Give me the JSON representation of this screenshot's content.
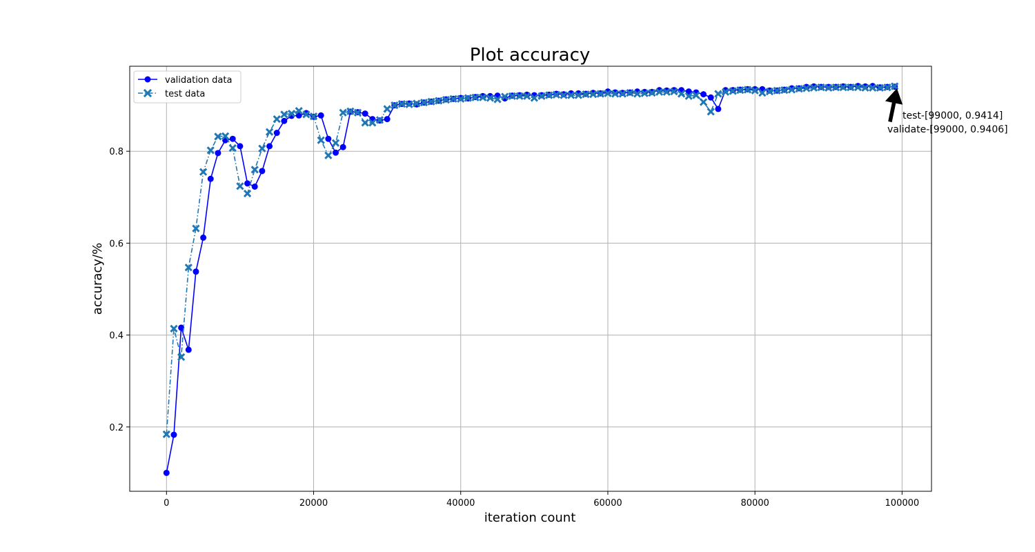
{
  "chart_data": {
    "type": "line",
    "title": "Plot accuracy",
    "xlabel": "iteration count",
    "ylabel": "accuracy/%",
    "xlim": [
      -5000,
      104000
    ],
    "ylim": [
      0.06,
      0.985
    ],
    "xticks": [
      0,
      20000,
      40000,
      60000,
      80000,
      100000
    ],
    "yticks": [
      0.2,
      0.4,
      0.6,
      0.8
    ],
    "xtick_labels": [
      "0",
      "20000",
      "40000",
      "60000",
      "80000",
      "100000"
    ],
    "ytick_labels": [
      "0.2",
      "0.4",
      "0.6",
      "0.8"
    ],
    "grid": true,
    "legend_position": "upper-left",
    "x": [
      0,
      1000,
      2000,
      3000,
      4000,
      5000,
      6000,
      7000,
      8000,
      9000,
      10000,
      11000,
      12000,
      13000,
      14000,
      15000,
      16000,
      17000,
      18000,
      19000,
      20000,
      21000,
      22000,
      23000,
      24000,
      25000,
      26000,
      27000,
      28000,
      29000,
      30000,
      31000,
      32000,
      33000,
      34000,
      35000,
      36000,
      37000,
      38000,
      39000,
      40000,
      41000,
      42000,
      43000,
      44000,
      45000,
      46000,
      47000,
      48000,
      49000,
      50000,
      51000,
      52000,
      53000,
      54000,
      55000,
      56000,
      57000,
      58000,
      59000,
      60000,
      61000,
      62000,
      63000,
      64000,
      65000,
      66000,
      67000,
      68000,
      69000,
      70000,
      71000,
      72000,
      73000,
      74000,
      75000,
      76000,
      77000,
      78000,
      79000,
      80000,
      81000,
      82000,
      83000,
      84000,
      85000,
      86000,
      87000,
      88000,
      89000,
      90000,
      91000,
      92000,
      93000,
      94000,
      95000,
      96000,
      97000,
      98000,
      99000
    ],
    "series": [
      {
        "name": "validation data",
        "color": "#0000ff",
        "line_style": "solid",
        "marker": "circle",
        "values": [
          0.1,
          0.183,
          0.416,
          0.368,
          0.538,
          0.612,
          0.74,
          0.796,
          0.824,
          0.827,
          0.811,
          0.73,
          0.723,
          0.757,
          0.811,
          0.84,
          0.866,
          0.877,
          0.878,
          0.883,
          0.875,
          0.878,
          0.827,
          0.797,
          0.809,
          0.886,
          0.885,
          0.882,
          0.87,
          0.867,
          0.87,
          0.9,
          0.903,
          0.904,
          0.902,
          0.906,
          0.908,
          0.91,
          0.913,
          0.914,
          0.916,
          0.915,
          0.918,
          0.92,
          0.92,
          0.921,
          0.915,
          0.921,
          0.922,
          0.923,
          0.922,
          0.922,
          0.923,
          0.925,
          0.924,
          0.926,
          0.926,
          0.925,
          0.927,
          0.926,
          0.93,
          0.928,
          0.927,
          0.928,
          0.93,
          0.929,
          0.929,
          0.933,
          0.932,
          0.933,
          0.933,
          0.93,
          0.928,
          0.924,
          0.917,
          0.892,
          0.933,
          0.933,
          0.934,
          0.935,
          0.935,
          0.935,
          0.932,
          0.932,
          0.934,
          0.937,
          0.937,
          0.94,
          0.941,
          0.94,
          0.94,
          0.94,
          0.941,
          0.94,
          0.942,
          0.941,
          0.942,
          0.939,
          0.94,
          0.9406
        ]
      },
      {
        "name": "test data",
        "color": "#1f77b4",
        "line_style": "dashdot",
        "marker": "x",
        "values": [
          0.184,
          0.414,
          0.352,
          0.547,
          0.632,
          0.755,
          0.802,
          0.832,
          0.833,
          0.807,
          0.724,
          0.708,
          0.76,
          0.806,
          0.842,
          0.87,
          0.88,
          0.882,
          0.888,
          0.88,
          0.876,
          0.824,
          0.791,
          0.818,
          0.884,
          0.887,
          0.884,
          0.862,
          0.862,
          0.868,
          0.892,
          0.9,
          0.903,
          0.902,
          0.904,
          0.906,
          0.908,
          0.91,
          0.912,
          0.914,
          0.914,
          0.916,
          0.917,
          0.917,
          0.916,
          0.913,
          0.919,
          0.92,
          0.92,
          0.92,
          0.916,
          0.92,
          0.922,
          0.923,
          0.922,
          0.922,
          0.922,
          0.924,
          0.924,
          0.925,
          0.926,
          0.925,
          0.925,
          0.927,
          0.925,
          0.926,
          0.927,
          0.929,
          0.929,
          0.93,
          0.925,
          0.92,
          0.922,
          0.907,
          0.886,
          0.925,
          0.929,
          0.931,
          0.933,
          0.934,
          0.932,
          0.927,
          0.93,
          0.932,
          0.933,
          0.934,
          0.936,
          0.937,
          0.938,
          0.939,
          0.938,
          0.939,
          0.939,
          0.939,
          0.939,
          0.938,
          0.938,
          0.938,
          0.939,
          0.9414
        ]
      }
    ],
    "annotations": [
      {
        "text": "test-[99000, 0.9414]",
        "x": 99000,
        "y": 0.9414
      },
      {
        "text": "validate-[99000, 0.9406]",
        "x": 99000,
        "y": 0.9406
      }
    ]
  }
}
